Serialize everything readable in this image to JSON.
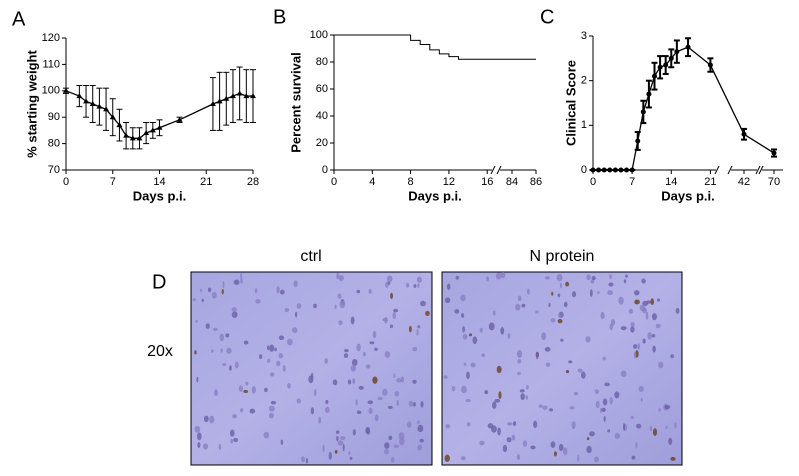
{
  "chart_data": [
    {
      "type": "line",
      "label": "A",
      "ylabel": "% starting weight",
      "xlabel": "Days p.i.",
      "x": [
        0,
        2,
        3,
        4,
        5,
        6,
        7,
        8,
        9,
        10,
        11,
        12,
        13,
        14,
        17,
        22,
        23,
        24,
        25,
        26,
        27,
        28
      ],
      "series": [
        {
          "color": "#000000",
          "marker": "triangle",
          "values": [
            100,
            98,
            96,
            95,
            94,
            93,
            90,
            87,
            83,
            82,
            82,
            84,
            85,
            86,
            89,
            95,
            96,
            97,
            98,
            99,
            98,
            98
          ],
          "errors": [
            1,
            4,
            6,
            7,
            7,
            8,
            7,
            6,
            5,
            4,
            4,
            4,
            3,
            3,
            1,
            10,
            11,
            10,
            10,
            10,
            10,
            10
          ]
        }
      ],
      "xlim": [
        0,
        28
      ],
      "ylim": [
        70,
        120
      ],
      "xticks": [
        0,
        7,
        14,
        21,
        28
      ],
      "yticks": [
        70,
        80,
        90,
        100,
        110,
        120
      ]
    },
    {
      "type": "step",
      "label": "B",
      "ylabel": "Percent survival",
      "xlabel": "Days p.i.",
      "x": [
        0,
        8,
        9,
        10,
        11,
        12,
        13,
        86
      ],
      "series": [
        {
          "color": "#000000",
          "values": [
            100,
            96,
            93,
            89,
            86,
            84,
            82,
            82
          ]
        }
      ],
      "xlim": [
        0,
        86
      ],
      "xbreaks": [
        [
          16.5,
          83
        ]
      ],
      "ylim": [
        0,
        100
      ],
      "xticks": [
        0,
        4,
        8,
        12,
        16,
        84,
        86
      ],
      "yticks": [
        0,
        20,
        40,
        60,
        80,
        100
      ]
    },
    {
      "type": "line",
      "label": "C",
      "ylabel": "Clinical Score",
      "xlabel": "Days p.i.",
      "x": [
        0,
        1,
        2,
        3,
        4,
        5,
        6,
        7,
        8,
        9,
        10,
        11,
        12,
        13,
        14,
        15,
        17,
        21,
        42,
        70
      ],
      "series": [
        {
          "color": "#000000",
          "marker": "circle",
          "values": [
            0,
            0,
            0,
            0,
            0,
            0,
            0,
            0,
            0.65,
            1.3,
            1.7,
            2.1,
            2.3,
            2.35,
            2.5,
            2.65,
            2.75,
            2.35,
            0.8,
            0.38
          ],
          "errors": [
            0,
            0,
            0,
            0,
            0,
            0,
            0,
            0,
            0.2,
            0.25,
            0.3,
            0.3,
            0.25,
            0.2,
            0.2,
            0.25,
            0.2,
            0.15,
            0.12,
            0.08
          ]
        }
      ],
      "xlim": [
        0,
        73
      ],
      "xbreaks": [
        [
          22,
          38
        ],
        [
          46,
          66
        ]
      ],
      "ylim": [
        0,
        3
      ],
      "xticks": [
        0,
        7,
        14,
        21,
        42,
        70
      ],
      "yticks": [
        0,
        1,
        2,
        3
      ]
    }
  ],
  "panel_d": {
    "label": "D",
    "row_label": "20x",
    "images": [
      {
        "title": "ctrl"
      },
      {
        "title": "N protein"
      }
    ]
  }
}
